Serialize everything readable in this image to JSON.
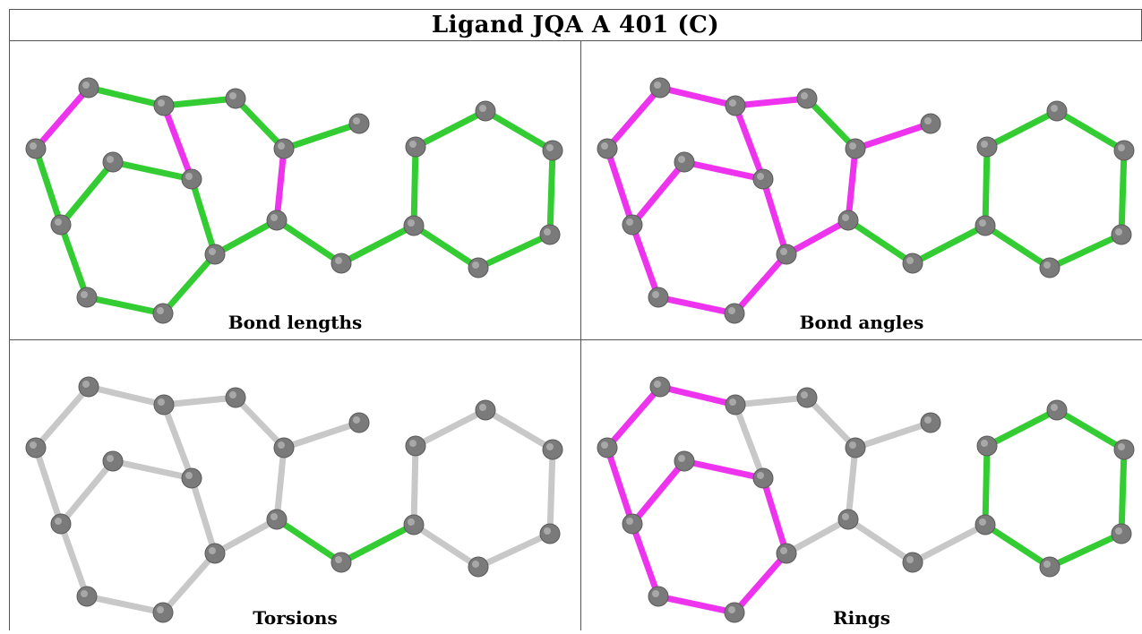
{
  "title": "Ligand JQA A 401 (C)",
  "panels": [
    {
      "caption": "Bond lengths"
    },
    {
      "caption": "Bond angles"
    },
    {
      "caption": "Torsions"
    },
    {
      "caption": "Rings"
    }
  ],
  "colors": {
    "atom": "#7a7a7a",
    "green": "#33cc33",
    "magenta": "#ee33ee",
    "gray_bond": "#c8c8c8"
  },
  "molecule": {
    "atoms": [
      "a1",
      "a2",
      "a3",
      "a4",
      "a5",
      "a6",
      "a7",
      "a8",
      "a9",
      "a10",
      "a11",
      "a12",
      "a13",
      "a14",
      "a15",
      "a16",
      "a17",
      "a18",
      "a19",
      "a20",
      "a21"
    ],
    "bonds": [
      [
        "a1",
        "a2"
      ],
      [
        "a2",
        "a3"
      ],
      [
        "a3",
        "a4"
      ],
      [
        "a4",
        "a5"
      ],
      [
        "a5",
        "a6"
      ],
      [
        "a5",
        "a7"
      ],
      [
        "a7",
        "a8"
      ],
      [
        "a8",
        "a9"
      ],
      [
        "a9",
        "a10"
      ],
      [
        "a10",
        "a11"
      ],
      [
        "a11",
        "a12"
      ],
      [
        "a12",
        "a13"
      ],
      [
        "a13",
        "a14"
      ],
      [
        "a14",
        "a9"
      ],
      [
        "a7",
        "a15"
      ],
      [
        "a15",
        "a16"
      ],
      [
        "a16",
        "a17"
      ],
      [
        "a17",
        "a18"
      ],
      [
        "a18",
        "a1"
      ],
      [
        "a18",
        "a19"
      ],
      [
        "a19",
        "a20"
      ],
      [
        "a20",
        "a3"
      ],
      [
        "a20",
        "a15"
      ],
      [
        "a21",
        "a1"
      ]
    ]
  },
  "bond_coloring": {
    "bond_lengths": [
      "green",
      "green",
      "green",
      "green",
      "green",
      "green",
      "magenta",
      "green",
      "green",
      "green",
      "green",
      "green",
      "green",
      "green",
      "green",
      "green",
      "green",
      "green",
      "magenta",
      "green",
      "green",
      "magenta",
      "green",
      "green"
    ],
    "bond_angles": [
      "magenta",
      "magenta",
      "green",
      "magenta",
      "magenta",
      "magenta",
      "magenta",
      "green",
      "green",
      "green",
      "green",
      "green",
      "green",
      "green",
      "magenta",
      "magenta",
      "magenta",
      "magenta",
      "magenta",
      "magenta",
      "magenta",
      "magenta",
      "magenta",
      "magenta"
    ],
    "torsions": [
      "gray",
      "gray",
      "gray",
      "gray",
      "gray",
      "gray",
      "gray",
      "green",
      "green",
      "gray",
      "gray",
      "gray",
      "gray",
      "gray",
      "gray",
      "gray",
      "gray",
      "gray",
      "gray",
      "gray",
      "gray",
      "gray",
      "gray",
      "gray"
    ],
    "rings": [
      "magenta",
      "gray",
      "gray",
      "gray",
      "gray",
      "gray",
      "gray",
      "gray",
      "gray",
      "green",
      "green",
      "green",
      "green",
      "green",
      "gray",
      "gray",
      "magenta",
      "magenta",
      "magenta",
      "magenta",
      "magenta",
      "magenta",
      "gray",
      "magenta"
    ]
  }
}
